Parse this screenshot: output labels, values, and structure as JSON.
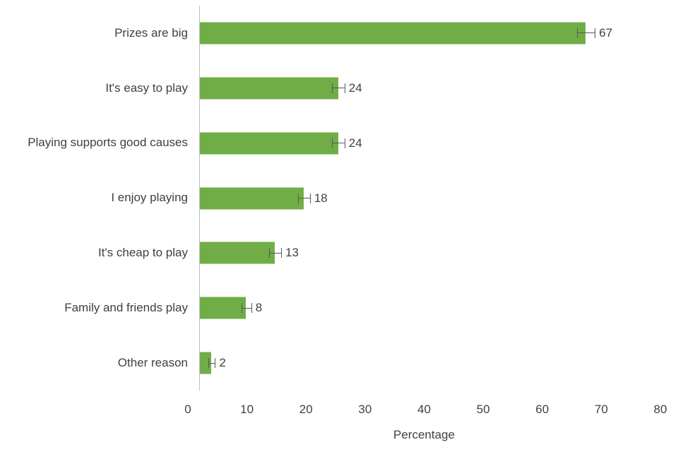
{
  "chart_data": {
    "type": "bar",
    "orientation": "horizontal",
    "title": "",
    "xlabel": "Percentage",
    "ylabel": "",
    "categories": [
      "Prizes are big",
      "It's easy to play",
      "Playing supports good causes",
      "I enjoy playing",
      "It's cheap to play",
      "Family and friends play",
      "Other reason"
    ],
    "values": [
      67,
      24,
      24,
      18,
      13,
      8,
      2
    ],
    "errors": [
      1.5,
      1,
      1,
      1,
      1,
      0.8,
      0.5
    ],
    "xlim": [
      0,
      80
    ],
    "xticks": [
      0,
      10,
      20,
      30,
      40,
      50,
      60,
      70,
      80
    ],
    "grid": false,
    "legend": "none",
    "bar_color": "#70AD47",
    "error_color": "#595959",
    "text_color": "#404040",
    "axis_color": "#BFBFBF"
  }
}
